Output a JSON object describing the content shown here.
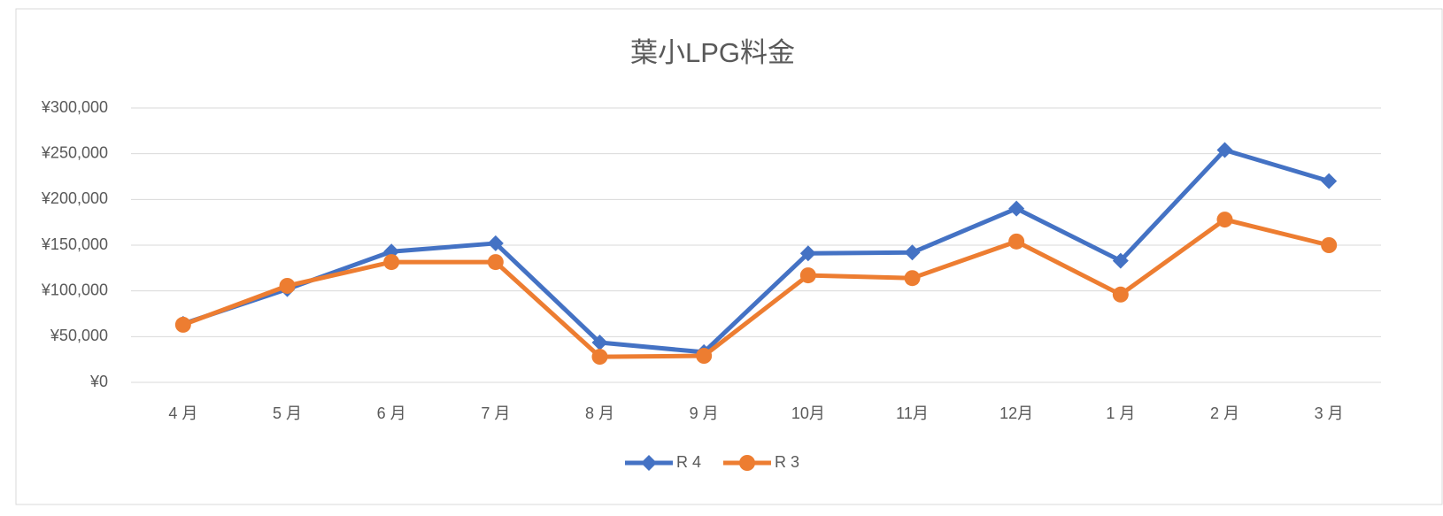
{
  "chart_data": {
    "type": "line",
    "title": "葉小LPG料金",
    "categories": [
      "4 月",
      "5 月",
      "6 月",
      "7 月",
      "8 月",
      "9 月",
      "10月",
      "11月",
      "12月",
      "1 月",
      "2 月",
      "3 月"
    ],
    "series": [
      {
        "name": "R 4",
        "color": "#4472c4",
        "marker": "diamond",
        "values": [
          64000,
          102000,
          143000,
          152000,
          43500,
          33000,
          141000,
          142000,
          190000,
          133000,
          254000,
          220000
        ]
      },
      {
        "name": "R 3",
        "color": "#ed7d31",
        "marker": "circle",
        "values": [
          63000,
          105500,
          131500,
          131500,
          28000,
          29000,
          117000,
          114000,
          154000,
          96000,
          178000,
          150000
        ]
      }
    ],
    "ylim": [
      0,
      300000
    ],
    "yticks": [
      {
        "value": 0,
        "label": "¥0"
      },
      {
        "value": 50000,
        "label": "¥50,000"
      },
      {
        "value": 100000,
        "label": "¥100,000"
      },
      {
        "value": 150000,
        "label": "¥150,000"
      },
      {
        "value": 200000,
        "label": "¥200,000"
      },
      {
        "value": 250000,
        "label": "¥250,000"
      },
      {
        "value": 300000,
        "label": "¥300,000"
      }
    ],
    "grid": true,
    "legend": "bottom"
  }
}
